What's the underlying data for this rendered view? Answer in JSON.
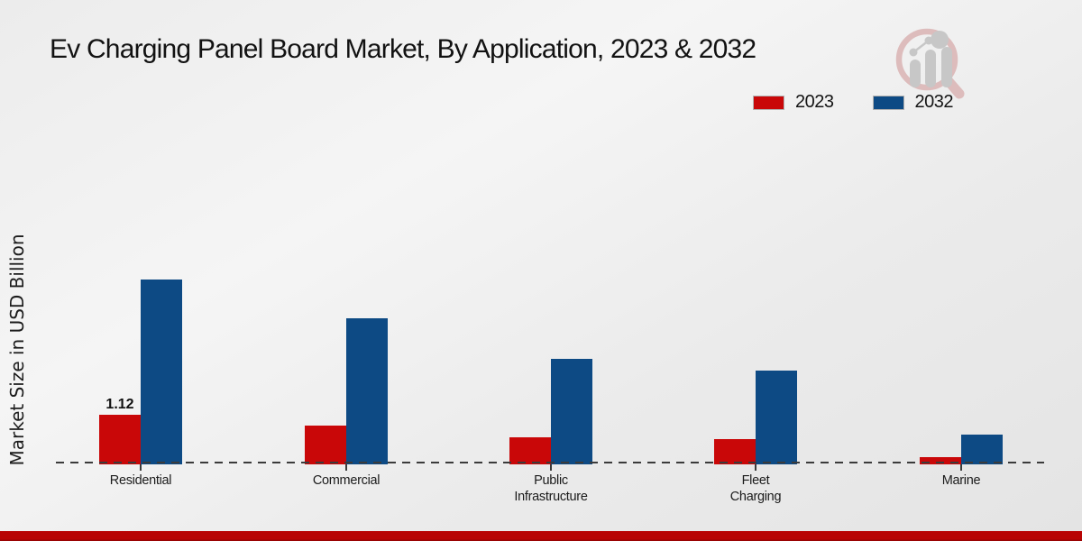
{
  "title": "Ev Charging Panel Board Market, By Application, 2023 & 2032",
  "logo": {
    "name": "market-research-magnifier-logo"
  },
  "legend": {
    "items": [
      {
        "label": "2023",
        "color": "#c90708"
      },
      {
        "label": "2032",
        "color": "#0d4a84"
      }
    ]
  },
  "chart_data": {
    "type": "bar",
    "title": "Ev Charging Panel Board Market, By Application, 2023 & 2032",
    "ylabel": "Market Size in USD Billion",
    "xlabel": "",
    "categories": [
      "Residential",
      "Commercial",
      "Public Infrastructure",
      "Fleet Charging",
      "Marine"
    ],
    "category_label_lines": [
      [
        "Residential"
      ],
      [
        "Commercial"
      ],
      [
        "Public",
        "Infrastructure"
      ],
      [
        "Fleet",
        "Charging"
      ],
      [
        "Marine"
      ]
    ],
    "series": [
      {
        "name": "2023",
        "color": "#c90708",
        "values": [
          1.12,
          0.87,
          0.61,
          0.57,
          0.16
        ]
      },
      {
        "name": "2032",
        "color": "#0d4a84",
        "values": [
          4.14,
          3.27,
          2.37,
          2.11,
          0.66
        ]
      }
    ],
    "ylim": [
      0,
      4.6
    ],
    "grid": false,
    "y_ticks_visible": false,
    "legend_position": "top-right",
    "baseline_style": "dashed",
    "data_labels": [
      {
        "category": "Residential",
        "series": "2023",
        "text": "1.12"
      }
    ]
  },
  "footer": {
    "band_color": "#b80404"
  },
  "colors": {
    "background": "#ededed",
    "axis": "#3b3b3b",
    "text": "#141414"
  }
}
